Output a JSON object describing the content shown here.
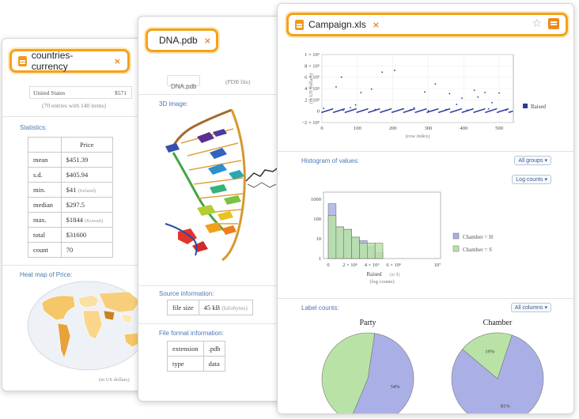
{
  "card1": {
    "tab_title": "countries-currency",
    "row_label": "United States",
    "row_value": "$571",
    "entries_note": "(70 entries with 140 items)",
    "statistics_title": "Statistics:",
    "stats_header": "Price",
    "stats": [
      {
        "label": "mean",
        "value": "$451.39",
        "note": ""
      },
      {
        "label": "s.d.",
        "value": "$405.94",
        "note": ""
      },
      {
        "label": "min.",
        "value": "$41",
        "note": "(Ireland)"
      },
      {
        "label": "median",
        "value": "$297.5",
        "note": ""
      },
      {
        "label": "max.",
        "value": "$1844",
        "note": "(Kuwait)"
      },
      {
        "label": "total",
        "value": "$31600",
        "note": ""
      },
      {
        "label": "count",
        "value": "70",
        "note": ""
      }
    ],
    "heatmap_title": "Heat map of Price:",
    "heatmap_unit": "(in US dollars)"
  },
  "card2": {
    "tab_title": "DNA.pdb",
    "file_chip": "DNA.pdb",
    "file_type": "(PDB file)",
    "image_title": "3D image:",
    "source_title": "Source information:",
    "file_size_label": "file size",
    "file_size_value": "45 kB",
    "file_size_note": "(kilobytes)",
    "format_title": "File format information:",
    "format_rows": [
      {
        "label": "extension",
        "value": ".pdb"
      },
      {
        "label": "type",
        "value": "data"
      }
    ]
  },
  "card3": {
    "tab_title": "Campaign.xls",
    "scatter": {
      "ylabel": "(in US dollars)",
      "xlabel": "(row index)",
      "legend": "Raised",
      "yticks": [
        "1 × 10⁶",
        "8 × 10⁵",
        "6 × 10⁵",
        "4 × 10⁵",
        "2 × 10⁵",
        "0",
        "−2 × 10⁵"
      ],
      "xticks": [
        "0",
        "100",
        "200",
        "300",
        "400",
        "500"
      ]
    },
    "histogram_title": "Histogram of values:",
    "all_groups_btn": "All groups ▾",
    "log_counts_btn": "Log counts ▾",
    "label_counts_title": "Label counts:",
    "all_columns_btn": "All columns ▾"
  },
  "chart_data": [
    {
      "type": "scatter",
      "title": "",
      "xlabel": "(row index)",
      "ylabel": "(in US dollars)",
      "xlim": [
        0,
        540
      ],
      "ylim": [
        -200000,
        1000000
      ],
      "legend": "Raised",
      "legend_position": "right",
      "series": [
        {
          "name": "Raised",
          "points": [
            [
              5,
              50000
            ],
            [
              40,
              430000
            ],
            [
              55,
              600000
            ],
            [
              95,
              110000
            ],
            [
              110,
              330000
            ],
            [
              140,
              390000
            ],
            [
              170,
              690000
            ],
            [
              205,
              720000
            ],
            [
              260,
              60000
            ],
            [
              290,
              340000
            ],
            [
              320,
              480000
            ],
            [
              360,
              310000
            ],
            [
              380,
              120000
            ],
            [
              395,
              230000
            ],
            [
              430,
              370000
            ],
            [
              440,
              250000
            ],
            [
              460,
              330000
            ],
            [
              480,
              150000
            ],
            [
              500,
              320000
            ],
            [
              60,
              20000
            ],
            [
              150,
              30000
            ],
            [
              230,
              40000
            ],
            [
              300,
              10000
            ],
            [
              350,
              30000
            ],
            [
              410,
              20000
            ],
            [
              470,
              40000
            ],
            [
              520,
              20000
            ],
            [
              80,
              60000
            ],
            [
              180,
              15000
            ],
            [
              250,
              25000
            ]
          ]
        }
      ]
    },
    {
      "type": "bar",
      "title": "",
      "xlabel": "Raised",
      "xlabel_unit": "(in $)",
      "xlabel_note": "(log counts)",
      "yscale": "log",
      "yticks": [
        "1000",
        "100",
        "10",
        "1"
      ],
      "xticks": [
        "0",
        "2 × 10⁶",
        "4 × 10⁶",
        "6 × 10⁶",
        "10⁷"
      ],
      "xlim": [
        0,
        10000000
      ],
      "series": [
        {
          "name": "Chamber = H",
          "color": "#aab0e6",
          "values": [
            600,
            40,
            30,
            12,
            8,
            4,
            2,
            0,
            0,
            0,
            0,
            0,
            0,
            0
          ]
        },
        {
          "name": "Chamber = S",
          "color": "#b9e3a6",
          "values": [
            150,
            40,
            30,
            12,
            6,
            6,
            6,
            0,
            0,
            1,
            1,
            1,
            1,
            1
          ]
        }
      ]
    },
    {
      "type": "pie",
      "title": "Party",
      "slices": [
        {
          "label": "54%",
          "value": 54,
          "color": "#aab0e6"
        },
        {
          "label": "",
          "value": 46,
          "color": "#b9e3a6"
        }
      ]
    },
    {
      "type": "pie",
      "title": "Chamber",
      "slices": [
        {
          "label": "81%",
          "value": 81,
          "color": "#aab0e6"
        },
        {
          "label": "19%",
          "value": 19,
          "color": "#b9e3a6"
        }
      ]
    }
  ]
}
